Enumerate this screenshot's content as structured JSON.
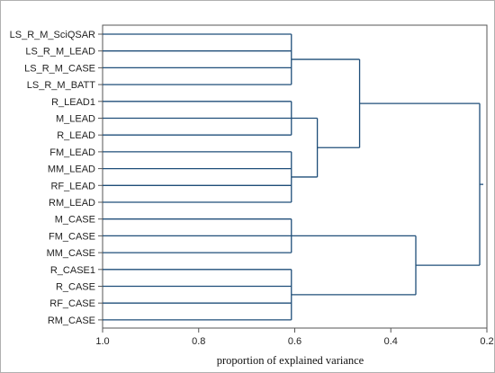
{
  "chart_data": {
    "type": "dendrogram",
    "orientation": "horizontal",
    "xlabel": "proportion of explained variance",
    "xlim": [
      1.0,
      0.2
    ],
    "xticks": [
      {
        "value": 1.0,
        "label": "1.0"
      },
      {
        "value": 0.8,
        "label": "0.8"
      },
      {
        "value": 0.6,
        "label": "0.6"
      },
      {
        "value": 0.4,
        "label": "0.4"
      },
      {
        "value": 0.2,
        "label": "0.2"
      }
    ],
    "leaves": [
      "LS_R_M_SciQSAR",
      "LS_R_M_LEAD",
      "LS_R_M_CASE",
      "LS_R_M_BATT",
      "R_LEAD1",
      "M_LEAD",
      "R_LEAD",
      "FM_LEAD",
      "MM_LEAD",
      "RF_LEAD",
      "RM_LEAD",
      "M_CASE",
      "FM_CASE",
      "MM_CASE",
      "R_CASE1",
      "R_CASE",
      "RF_CASE",
      "RM_CASE"
    ],
    "merges": [
      {
        "children": [
          "L0",
          "L1",
          "L2",
          "L3"
        ],
        "height": 0.607
      },
      {
        "children": [
          "L4",
          "L5",
          "L6"
        ],
        "height": 0.607
      },
      {
        "children": [
          "L7",
          "L8",
          "L9",
          "L10"
        ],
        "height": 0.607
      },
      {
        "children": [
          "L11",
          "L12",
          "L13"
        ],
        "height": 0.607
      },
      {
        "children": [
          "L14",
          "L15",
          "L16",
          "L17"
        ],
        "height": 0.607
      },
      {
        "children": [
          "N1",
          "N2"
        ],
        "height": 0.553
      },
      {
        "children": [
          "N0",
          "N5"
        ],
        "height": 0.465
      },
      {
        "children": [
          "N3",
          "N4"
        ],
        "height": 0.348
      },
      {
        "children": [
          "N6",
          "N7"
        ],
        "height": 0.215
      }
    ],
    "line_color": "#1f4e79",
    "axis_color": "#555555",
    "grid": false,
    "legend": "none"
  }
}
